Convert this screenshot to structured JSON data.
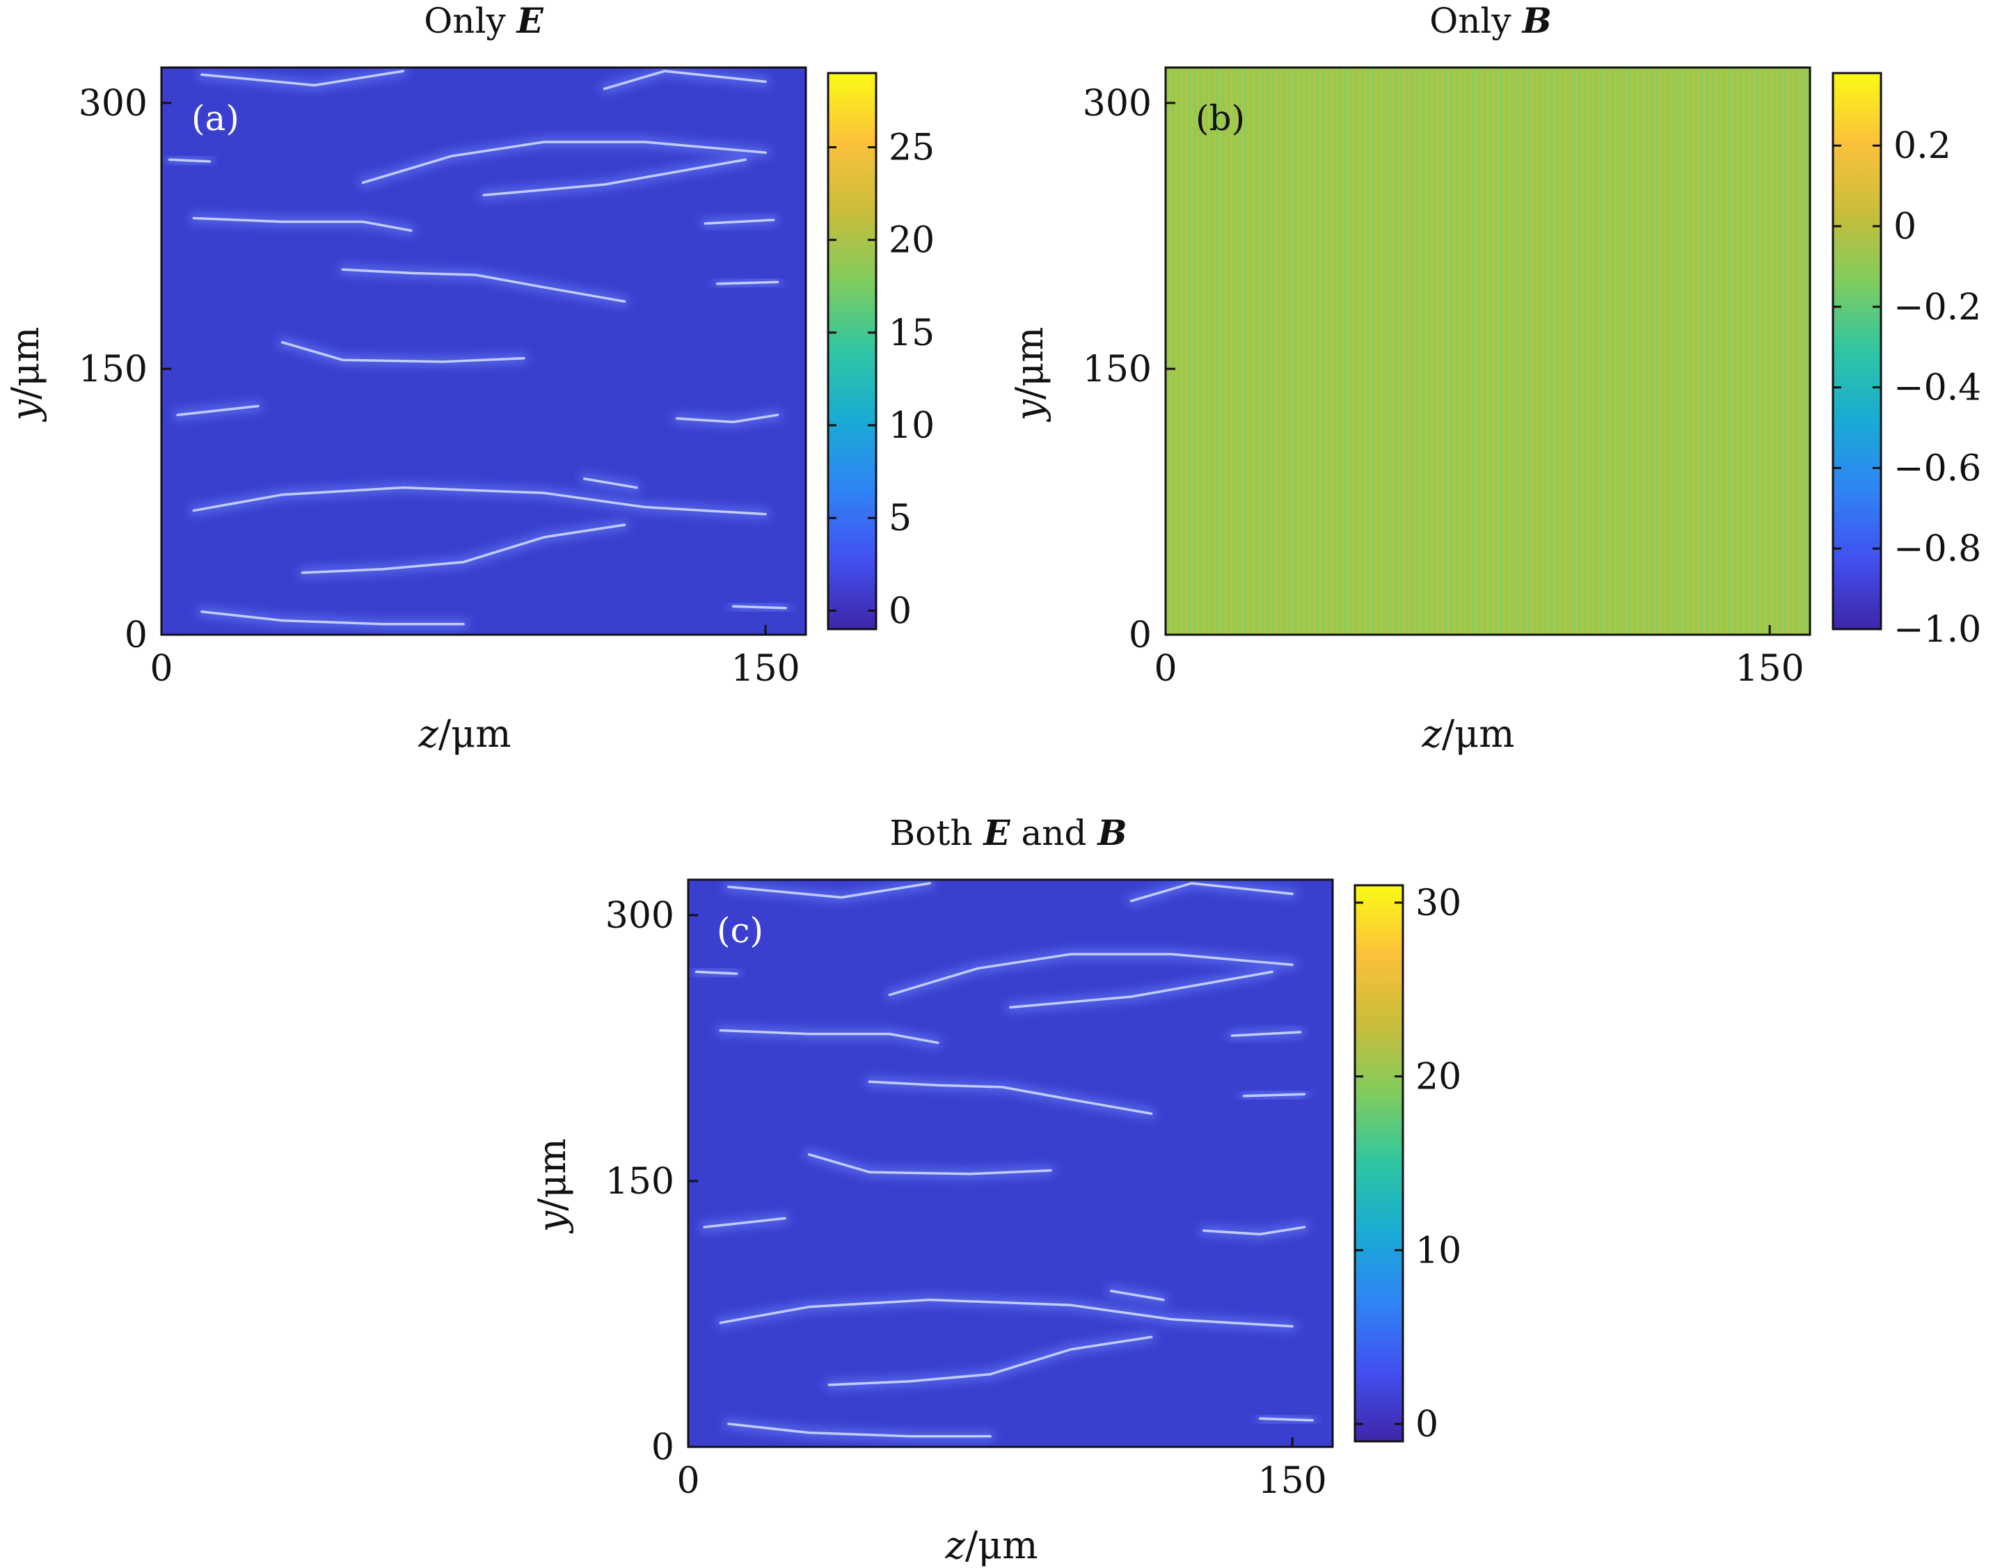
{
  "panels": [
    {
      "id": "a",
      "title_prefix": "Only ",
      "title_symbol": "E",
      "panel_label": "(a)",
      "xlabel_var": "z",
      "xlabel_unit": "/μm",
      "ylabel_var": "y",
      "ylabel_unit": "/μm"
    },
    {
      "id": "b",
      "title_prefix": "Only ",
      "title_symbol": "B",
      "panel_label": "(b)",
      "xlabel_var": "z",
      "xlabel_unit": "/μm",
      "ylabel_var": "y",
      "ylabel_unit": "/μm"
    },
    {
      "id": "c",
      "title_prefix": "Both ",
      "title_symbol": "E",
      "title_mid": " and ",
      "title_symbol2": "B",
      "panel_label": "(c)",
      "xlabel_var": "z",
      "xlabel_unit": "/μm",
      "ylabel_var": "y",
      "ylabel_unit": "/μm"
    }
  ],
  "colors": {
    "background_dark_blue": "#3a3fd0",
    "filament_light": "#dfe8ff",
    "colormap": [
      "#3e26a8",
      "#4250f0",
      "#2f84f5",
      "#19abd5",
      "#2ec6a2",
      "#80cc5e",
      "#c9bd3a",
      "#fcc13b",
      "#f9fa14"
    ]
  },
  "chart_data": [
    {
      "type": "heatmap",
      "panel": "(a)",
      "title": "Only E",
      "xlabel": "z/μm",
      "ylabel": "y/μm",
      "xlim": [
        0,
        160
      ],
      "ylim": [
        0,
        320
      ],
      "xticks": [
        0,
        150
      ],
      "yticks": [
        0,
        150,
        300
      ],
      "colorbar": {
        "min": -1,
        "max": 29,
        "ticks": [
          0,
          5,
          10,
          15,
          20,
          25
        ],
        "tick_labels": [
          "0",
          "5",
          "10",
          "15",
          "20",
          "25"
        ]
      },
      "background_value": 2,
      "filaments": [
        {
          "z": [
            10,
            38,
            60
          ],
          "y": [
            316,
            310,
            318
          ]
        },
        {
          "z": [
            110,
            125,
            150
          ],
          "y": [
            308,
            318,
            312
          ]
        },
        {
          "z": [
            2,
            12
          ],
          "y": [
            268,
            267
          ]
        },
        {
          "z": [
            50,
            72,
            95,
            120,
            150
          ],
          "y": [
            255,
            270,
            278,
            278,
            272
          ]
        },
        {
          "z": [
            80,
            110,
            145
          ],
          "y": [
            248,
            254,
            268
          ]
        },
        {
          "z": [
            8,
            30,
            50,
            62
          ],
          "y": [
            235,
            233,
            233,
            228
          ]
        },
        {
          "z": [
            135,
            152
          ],
          "y": [
            232,
            234
          ]
        },
        {
          "z": [
            45,
            62,
            78,
            95,
            115
          ],
          "y": [
            206,
            204,
            203,
            196,
            188
          ]
        },
        {
          "z": [
            138,
            153
          ],
          "y": [
            198,
            199
          ]
        },
        {
          "z": [
            30,
            45,
            70,
            90
          ],
          "y": [
            165,
            155,
            154,
            156
          ]
        },
        {
          "z": [
            4,
            24
          ],
          "y": [
            124,
            129
          ]
        },
        {
          "z": [
            128,
            142,
            153
          ],
          "y": [
            122,
            120,
            124
          ]
        },
        {
          "z": [
            105,
            118
          ],
          "y": [
            88,
            83
          ]
        },
        {
          "z": [
            8,
            30,
            60,
            95,
            120,
            150
          ],
          "y": [
            70,
            79,
            83,
            80,
            72,
            68
          ]
        },
        {
          "z": [
            35,
            55,
            75,
            95,
            115
          ],
          "y": [
            35,
            37,
            41,
            55,
            62
          ]
        },
        {
          "z": [
            10,
            30,
            55,
            75
          ],
          "y": [
            13,
            8,
            6,
            6
          ]
        },
        {
          "z": [
            142,
            155
          ],
          "y": [
            16,
            15
          ]
        }
      ]
    },
    {
      "type": "heatmap",
      "panel": "(b)",
      "title": "Only B",
      "xlabel": "z/μm",
      "ylabel": "y/μm",
      "xlim": [
        0,
        160
      ],
      "ylim": [
        0,
        320
      ],
      "xticks": [
        0,
        150
      ],
      "yticks": [
        0,
        150,
        300
      ],
      "colorbar": {
        "min": -1.0,
        "max": 0.38,
        "ticks": [
          -1.0,
          -0.8,
          -0.6,
          -0.4,
          -0.2,
          0,
          0.2
        ],
        "tick_labels": [
          "−1.0",
          "−0.8",
          "−0.6",
          "−0.4",
          "−0.2",
          "0",
          "0.2"
        ]
      },
      "background_value": 0.05,
      "pattern": "fine vertical striping alternating between about 0 and 0.2"
    },
    {
      "type": "heatmap",
      "panel": "(c)",
      "title": "Both E and B",
      "xlabel": "z/μm",
      "ylabel": "y/μm",
      "xlim": [
        0,
        160
      ],
      "ylim": [
        0,
        320
      ],
      "xticks": [
        0,
        150
      ],
      "yticks": [
        0,
        150,
        300
      ],
      "colorbar": {
        "min": -1,
        "max": 31,
        "ticks": [
          0,
          10,
          20,
          30
        ],
        "tick_labels": [
          "0",
          "10",
          "20",
          "30"
        ]
      },
      "background_value": 2,
      "filaments": [
        {
          "z": [
            10,
            38,
            60
          ],
          "y": [
            316,
            310,
            318
          ]
        },
        {
          "z": [
            110,
            125,
            150
          ],
          "y": [
            308,
            318,
            312
          ]
        },
        {
          "z": [
            2,
            12
          ],
          "y": [
            268,
            267
          ]
        },
        {
          "z": [
            50,
            72,
            95,
            120,
            150
          ],
          "y": [
            255,
            270,
            278,
            278,
            272
          ]
        },
        {
          "z": [
            80,
            110,
            145
          ],
          "y": [
            248,
            254,
            268
          ]
        },
        {
          "z": [
            8,
            30,
            50,
            62
          ],
          "y": [
            235,
            233,
            233,
            228
          ]
        },
        {
          "z": [
            135,
            152
          ],
          "y": [
            232,
            234
          ]
        },
        {
          "z": [
            45,
            62,
            78,
            95,
            115
          ],
          "y": [
            206,
            204,
            203,
            196,
            188
          ]
        },
        {
          "z": [
            138,
            153
          ],
          "y": [
            198,
            199
          ]
        },
        {
          "z": [
            30,
            45,
            70,
            90
          ],
          "y": [
            165,
            155,
            154,
            156
          ]
        },
        {
          "z": [
            4,
            24
          ],
          "y": [
            124,
            129
          ]
        },
        {
          "z": [
            128,
            142,
            153
          ],
          "y": [
            122,
            120,
            124
          ]
        },
        {
          "z": [
            105,
            118
          ],
          "y": [
            88,
            83
          ]
        },
        {
          "z": [
            8,
            30,
            60,
            95,
            120,
            150
          ],
          "y": [
            70,
            79,
            83,
            80,
            72,
            68
          ]
        },
        {
          "z": [
            35,
            55,
            75,
            95,
            115
          ],
          "y": [
            35,
            37,
            41,
            55,
            62
          ]
        },
        {
          "z": [
            10,
            30,
            55,
            75
          ],
          "y": [
            13,
            8,
            6,
            6
          ]
        },
        {
          "z": [
            142,
            155
          ],
          "y": [
            16,
            15
          ]
        }
      ]
    }
  ]
}
